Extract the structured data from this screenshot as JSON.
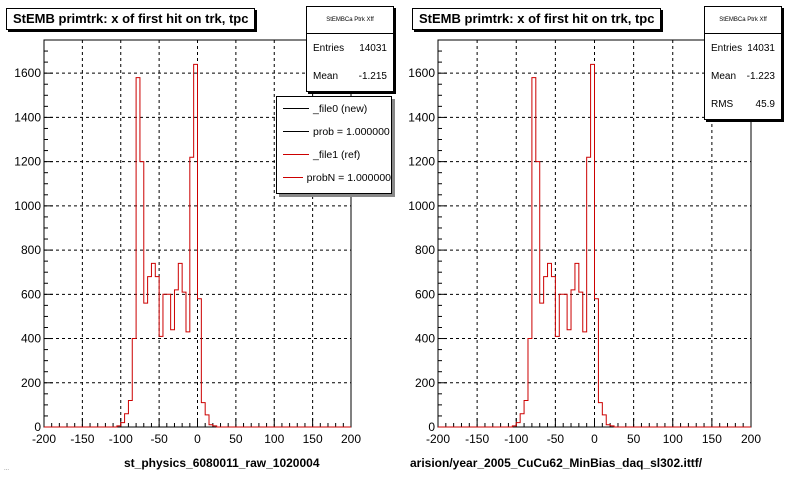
{
  "panels": [
    {
      "title": "StEMB primtrk: x of first hit on trk, tpc",
      "stats": {
        "name": "StEMBCa Ptrk Xff",
        "rows": [
          {
            "label": "Entries",
            "value": "14031"
          },
          {
            "label": "Mean",
            "value": "-1.215"
          }
        ]
      },
      "legend": [
        {
          "label": "_file0 (new)",
          "color": "#000000"
        },
        {
          "label": "prob = 1.000000",
          "color": "#000000"
        },
        {
          "label": "_file1 (ref)",
          "color": "#cc0000"
        },
        {
          "label": "probN = 1.000000",
          "color": "#cc0000"
        }
      ],
      "file_label": "st_physics_6080011_raw_1020004"
    },
    {
      "title": "StEMB primtrk: x of first hit on trk, tpc",
      "stats": {
        "name": "StEMBCa Ptrk Xff",
        "rows": [
          {
            "label": "Entries",
            "value": "14031"
          },
          {
            "label": "Mean",
            "value": "-1.223"
          },
          {
            "label": "RMS",
            "value": "45.9"
          }
        ]
      },
      "file_label": "arision/year_2005_CuCu62_MinBias_daq_sl302.ittf/"
    }
  ],
  "footer_stamp": "...",
  "chart_data": [
    {
      "type": "histogram",
      "xlim": [
        -200,
        200
      ],
      "ylim": [
        0,
        1750
      ],
      "xticks": [
        -200,
        -150,
        -100,
        -50,
        0,
        50,
        100,
        150,
        200
      ],
      "yticks": [
        0,
        200,
        400,
        600,
        800,
        1000,
        1200,
        1400,
        1600
      ],
      "grid": true,
      "line_color": "#cc0000",
      "bin_width": 5,
      "bin_start": -200,
      "values": [
        0,
        0,
        0,
        0,
        0,
        0,
        0,
        0,
        0,
        0,
        0,
        0,
        0,
        0,
        0,
        0,
        0,
        0,
        0,
        5,
        20,
        60,
        120,
        400,
        1580,
        1200,
        560,
        680,
        740,
        680,
        410,
        600,
        600,
        440,
        620,
        740,
        610,
        430,
        1220,
        1640,
        580,
        110,
        55,
        10,
        5,
        0,
        0,
        0,
        0,
        0,
        0,
        0,
        0,
        0,
        0,
        0,
        0,
        0,
        0,
        0,
        0,
        0,
        0,
        0,
        0,
        0,
        0,
        0,
        0,
        0,
        0,
        0,
        0,
        0,
        0,
        0,
        0,
        0,
        0,
        0
      ]
    },
    {
      "type": "histogram",
      "xlim": [
        -200,
        200
      ],
      "ylim": [
        0,
        1750
      ],
      "xticks": [
        -200,
        -150,
        -100,
        -50,
        0,
        50,
        100,
        150,
        200
      ],
      "yticks": [
        0,
        200,
        400,
        600,
        800,
        1000,
        1200,
        1400,
        1600
      ],
      "grid": true,
      "line_color": "#cc0000",
      "bin_width": 5,
      "bin_start": -200,
      "values": [
        0,
        0,
        0,
        0,
        0,
        0,
        0,
        0,
        0,
        0,
        0,
        0,
        0,
        0,
        0,
        0,
        0,
        0,
        0,
        5,
        20,
        60,
        120,
        400,
        1580,
        1200,
        560,
        680,
        740,
        680,
        410,
        600,
        600,
        440,
        620,
        740,
        610,
        430,
        1220,
        1640,
        580,
        110,
        55,
        10,
        5,
        0,
        0,
        0,
        0,
        0,
        0,
        0,
        0,
        0,
        0,
        0,
        0,
        0,
        0,
        0,
        0,
        0,
        0,
        0,
        0,
        0,
        0,
        0,
        0,
        0,
        0,
        0,
        0,
        0,
        0,
        0,
        0,
        0,
        0,
        0
      ]
    }
  ]
}
